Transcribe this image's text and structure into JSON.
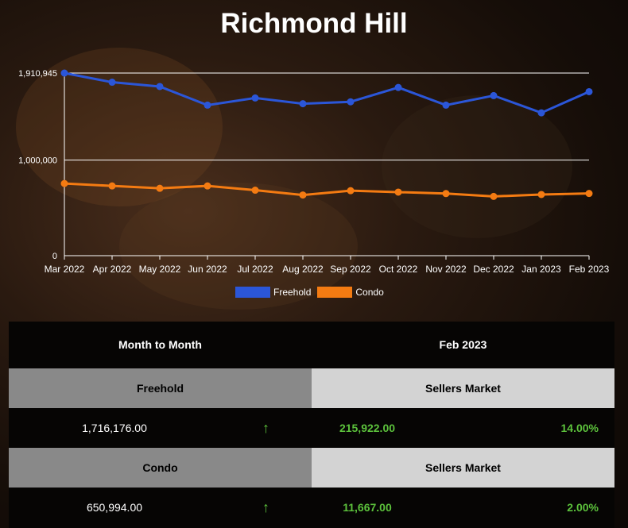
{
  "title": "Richmond Hill",
  "chart_data": {
    "type": "line",
    "categories": [
      "Mar 2022",
      "Apr 2022",
      "May 2022",
      "Jun 2022",
      "Jul 2022",
      "Aug 2022",
      "Sep 2022",
      "Oct 2022",
      "Nov 2022",
      "Dec 2022",
      "Jan 2023",
      "Feb 2023"
    ],
    "series": [
      {
        "name": "Freehold",
        "color": "#2b56d8",
        "values": [
          1910945,
          1815000,
          1770000,
          1575000,
          1650000,
          1590000,
          1610000,
          1760000,
          1575000,
          1675000,
          1495000,
          1716176
        ]
      },
      {
        "name": "Condo",
        "color": "#f47b12",
        "values": [
          755000,
          730000,
          705000,
          730000,
          685000,
          635000,
          680000,
          665000,
          650000,
          620000,
          640000,
          650994
        ]
      }
    ],
    "yticks": [
      {
        "value": 0,
        "label": "0"
      },
      {
        "value": 1000000,
        "label": "1,000,000"
      },
      {
        "value": 1910945,
        "label": "1,910,945"
      }
    ],
    "ylim": [
      0,
      1910945
    ],
    "grid": true,
    "legend": "bottom"
  },
  "table": {
    "header_left": "Month to Month",
    "header_right": "Feb 2023",
    "rows": [
      {
        "label": "Freehold",
        "market": "Sellers Market",
        "value": "1,716,176.00",
        "arrow": "↑",
        "change": "215,922.00",
        "pct": "14.00%"
      },
      {
        "label": "Condo",
        "market": "Sellers Market",
        "value": "650,994.00",
        "arrow": "↑",
        "change": "11,667.00",
        "pct": "2.00%"
      }
    ]
  }
}
